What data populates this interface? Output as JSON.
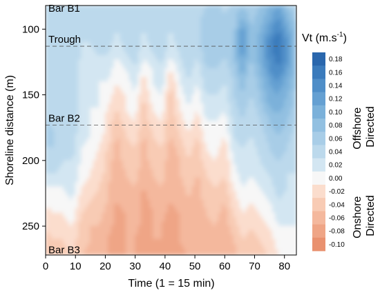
{
  "chart_data": {
    "type": "heatmap",
    "xlabel": "Time (1 = 15 min)",
    "ylabel": "Shoreline distance (m)",
    "xlim": [
      0,
      84
    ],
    "ylim": [
      272,
      82
    ],
    "x_ticks": [
      0,
      10,
      20,
      30,
      40,
      50,
      60,
      70,
      80
    ],
    "y_ticks": [
      100,
      150,
      200,
      250
    ],
    "colorbar": {
      "title": "Vt (m.s",
      "title_sup": "-1",
      "title_close": ")",
      "levels": [
        0.18,
        0.16,
        0.14,
        0.12,
        0.1,
        0.08,
        0.06,
        0.04,
        0.02,
        0.0,
        -0.02,
        -0.04,
        -0.06,
        -0.08,
        -0.1
      ],
      "level_labels": [
        "0.18",
        "0.16",
        "0.14",
        "0.12",
        "0.10",
        "0.08",
        "0.06",
        "0.04",
        "0.02",
        "0.00",
        "-0.02",
        "-0.04",
        "-0.06",
        "-0.08",
        "-0.10"
      ],
      "offshore_label": [
        "Offshore",
        "Directed"
      ],
      "onshore_label": [
        "Onshore",
        "Directed"
      ],
      "colors": [
        "#2a67ad",
        "#3b7bbc",
        "#4f8ec8",
        "#65a0d2",
        "#7bb1da",
        "#92c0e1",
        "#a8cde7",
        "#bcd9ec",
        "#d3e6f2",
        "#f7f7f7",
        "#fbddcd",
        "#f8cbb4",
        "#f4b89d",
        "#efa586",
        "#e9916f"
      ]
    },
    "annotations": [
      {
        "label": "Bar B1",
        "y": 84,
        "line": false
      },
      {
        "label": "Trough",
        "y": 113,
        "line": true
      },
      {
        "label": "Bar B2",
        "y": 173,
        "line": true
      },
      {
        "label": "Bar B3",
        "y": 268,
        "line": false
      }
    ],
    "x": [
      0,
      3,
      6,
      9,
      12,
      15,
      18,
      21,
      24,
      27,
      30,
      33,
      36,
      39,
      42,
      45,
      48,
      51,
      54,
      57,
      60,
      63,
      66,
      69,
      72,
      75,
      78,
      81,
      84
    ],
    "y": [
      82,
      90,
      100,
      110,
      120,
      130,
      140,
      150,
      160,
      170,
      180,
      190,
      200,
      210,
      220,
      230,
      240,
      250,
      260,
      272
    ],
    "z": [
      [
        0.05,
        0.05,
        0.06,
        0.04,
        0.06,
        0.05,
        0.04,
        0.06,
        0.05,
        0.06,
        0.04,
        0.05,
        0.06,
        0.05,
        0.04,
        0.06,
        0.05,
        0.04,
        0.06,
        0.07,
        0.05,
        0.06,
        0.08,
        0.06,
        0.08,
        0.1,
        0.12,
        0.08,
        0.06
      ],
      [
        0.06,
        0.05,
        0.06,
        0.05,
        0.06,
        0.05,
        0.04,
        0.06,
        0.05,
        0.06,
        0.05,
        0.05,
        0.06,
        0.05,
        0.04,
        0.06,
        0.05,
        0.05,
        0.07,
        0.07,
        0.06,
        0.07,
        0.1,
        0.07,
        0.09,
        0.11,
        0.14,
        0.1,
        0.07
      ],
      [
        0.06,
        0.06,
        0.05,
        0.06,
        0.05,
        0.04,
        0.05,
        0.06,
        0.04,
        0.05,
        0.06,
        0.04,
        0.05,
        0.06,
        0.04,
        0.05,
        0.06,
        0.05,
        0.08,
        0.08,
        0.07,
        0.07,
        0.13,
        0.08,
        0.1,
        0.13,
        0.16,
        0.12,
        0.08
      ],
      [
        0.05,
        0.06,
        0.05,
        0.06,
        0.04,
        0.04,
        0.05,
        0.05,
        0.03,
        0.05,
        0.06,
        0.03,
        0.05,
        0.06,
        0.03,
        0.05,
        0.06,
        0.05,
        0.08,
        0.07,
        0.07,
        0.08,
        0.14,
        0.09,
        0.11,
        0.15,
        0.18,
        0.14,
        0.09
      ],
      [
        0.05,
        0.05,
        0.04,
        0.05,
        0.04,
        0.03,
        0.04,
        0.04,
        0.02,
        0.04,
        0.05,
        0.02,
        0.04,
        0.05,
        0.02,
        0.04,
        0.05,
        0.04,
        0.07,
        0.07,
        0.06,
        0.08,
        0.13,
        0.08,
        0.11,
        0.15,
        0.17,
        0.14,
        0.09
      ],
      [
        0.05,
        0.05,
        0.04,
        0.05,
        0.03,
        0.02,
        0.03,
        0.03,
        0.01,
        0.02,
        0.04,
        0.01,
        0.02,
        0.04,
        0.0,
        0.03,
        0.05,
        0.03,
        0.06,
        0.06,
        0.05,
        0.07,
        0.11,
        0.07,
        0.1,
        0.14,
        0.16,
        0.13,
        0.08
      ],
      [
        0.06,
        0.05,
        0.04,
        0.05,
        0.03,
        0.02,
        0.02,
        0.02,
        0.0,
        0.01,
        0.03,
        -0.01,
        0.02,
        0.03,
        -0.02,
        0.02,
        0.04,
        0.02,
        0.05,
        0.05,
        0.04,
        0.06,
        0.09,
        0.06,
        0.09,
        0.12,
        0.14,
        0.11,
        0.08
      ],
      [
        0.06,
        0.05,
        0.04,
        0.06,
        0.03,
        0.02,
        0.02,
        0.01,
        -0.01,
        0.0,
        0.02,
        -0.02,
        0.01,
        0.02,
        -0.03,
        0.01,
        0.03,
        0.01,
        0.04,
        0.04,
        0.03,
        0.06,
        0.08,
        0.06,
        0.08,
        0.11,
        0.12,
        0.1,
        0.07
      ],
      [
        0.06,
        0.05,
        0.04,
        0.05,
        0.03,
        0.02,
        0.02,
        0.0,
        -0.02,
        0.0,
        0.01,
        -0.03,
        0.0,
        0.01,
        -0.03,
        0.0,
        0.02,
        0.0,
        0.03,
        0.03,
        0.02,
        0.05,
        0.07,
        0.05,
        0.07,
        0.1,
        0.11,
        0.09,
        0.07
      ],
      [
        0.06,
        0.05,
        0.04,
        0.05,
        0.03,
        0.02,
        0.01,
        -0.01,
        -0.03,
        -0.01,
        0.0,
        -0.03,
        -0.01,
        0.0,
        -0.04,
        -0.01,
        0.01,
        -0.01,
        0.02,
        0.02,
        0.01,
        0.04,
        0.06,
        0.04,
        0.06,
        0.08,
        0.09,
        0.08,
        0.06
      ],
      [
        0.07,
        0.06,
        0.04,
        0.05,
        0.03,
        0.02,
        0.01,
        -0.01,
        -0.04,
        -0.02,
        -0.01,
        -0.04,
        -0.02,
        -0.01,
        -0.04,
        -0.02,
        0.0,
        -0.02,
        0.01,
        0.02,
        0.0,
        0.04,
        0.05,
        0.04,
        0.05,
        0.07,
        0.08,
        0.07,
        0.05
      ],
      [
        0.06,
        0.06,
        0.04,
        0.05,
        0.02,
        0.01,
        0.0,
        -0.02,
        -0.05,
        -0.03,
        -0.02,
        -0.05,
        -0.03,
        -0.02,
        -0.05,
        -0.03,
        -0.01,
        -0.03,
        0.0,
        0.01,
        -0.01,
        0.03,
        0.04,
        0.03,
        0.05,
        0.06,
        0.07,
        0.06,
        0.05
      ],
      [
        0.05,
        0.05,
        0.04,
        0.04,
        0.02,
        0.01,
        -0.01,
        -0.03,
        -0.05,
        -0.03,
        -0.02,
        -0.05,
        -0.03,
        -0.03,
        -0.05,
        -0.04,
        -0.02,
        -0.03,
        -0.01,
        0.0,
        -0.02,
        0.02,
        0.03,
        0.02,
        0.04,
        0.05,
        0.06,
        0.05,
        0.04
      ],
      [
        0.04,
        0.04,
        0.03,
        0.04,
        0.01,
        0.0,
        -0.01,
        -0.03,
        -0.06,
        -0.04,
        -0.03,
        -0.06,
        -0.04,
        -0.03,
        -0.06,
        -0.04,
        -0.02,
        -0.04,
        -0.02,
        -0.01,
        -0.02,
        0.01,
        0.03,
        0.02,
        0.03,
        0.04,
        0.05,
        0.04,
        0.04
      ],
      [
        0.02,
        0.02,
        0.02,
        0.03,
        0.0,
        -0.01,
        -0.02,
        -0.04,
        -0.06,
        -0.05,
        -0.04,
        -0.06,
        -0.05,
        -0.04,
        -0.06,
        -0.05,
        -0.03,
        -0.05,
        -0.03,
        -0.02,
        -0.03,
        0.0,
        0.02,
        0.01,
        0.02,
        0.03,
        0.05,
        0.04,
        0.03
      ],
      [
        0.01,
        0.01,
        0.01,
        0.02,
        -0.01,
        -0.02,
        -0.03,
        -0.04,
        -0.06,
        -0.05,
        -0.04,
        -0.07,
        -0.05,
        -0.05,
        -0.06,
        -0.05,
        -0.04,
        -0.05,
        -0.03,
        -0.03,
        -0.04,
        -0.01,
        0.01,
        0.0,
        0.01,
        0.02,
        0.04,
        0.03,
        0.03
      ],
      [
        -0.01,
        0.0,
        0.0,
        0.01,
        -0.02,
        -0.03,
        -0.03,
        -0.05,
        -0.07,
        -0.06,
        -0.05,
        -0.07,
        -0.06,
        -0.05,
        -0.07,
        -0.06,
        -0.04,
        -0.06,
        -0.04,
        -0.03,
        -0.05,
        -0.02,
        0.0,
        -0.01,
        0.0,
        0.01,
        0.03,
        0.02,
        0.02
      ],
      [
        -0.02,
        -0.01,
        -0.01,
        0.0,
        -0.03,
        -0.04,
        -0.04,
        -0.05,
        -0.07,
        -0.06,
        -0.05,
        -0.07,
        -0.06,
        -0.06,
        -0.07,
        -0.06,
        -0.05,
        -0.06,
        -0.05,
        -0.04,
        -0.05,
        -0.03,
        -0.01,
        -0.02,
        -0.01,
        0.0,
        0.02,
        0.02,
        0.02
      ],
      [
        -0.03,
        -0.02,
        -0.02,
        -0.01,
        -0.03,
        -0.04,
        -0.05,
        -0.06,
        -0.07,
        -0.06,
        -0.06,
        -0.07,
        -0.06,
        -0.06,
        -0.07,
        -0.06,
        -0.05,
        -0.06,
        -0.05,
        -0.05,
        -0.06,
        -0.04,
        -0.02,
        -0.03,
        -0.02,
        -0.01,
        0.01,
        0.01,
        0.01
      ],
      [
        -0.04,
        -0.03,
        -0.03,
        -0.02,
        -0.04,
        -0.05,
        -0.05,
        -0.06,
        -0.07,
        -0.06,
        -0.06,
        -0.07,
        -0.07,
        -0.06,
        -0.07,
        -0.07,
        -0.06,
        -0.06,
        -0.06,
        -0.05,
        -0.06,
        -0.05,
        -0.03,
        -0.04,
        -0.03,
        -0.02,
        0.0,
        0.0,
        0.01
      ]
    ]
  }
}
